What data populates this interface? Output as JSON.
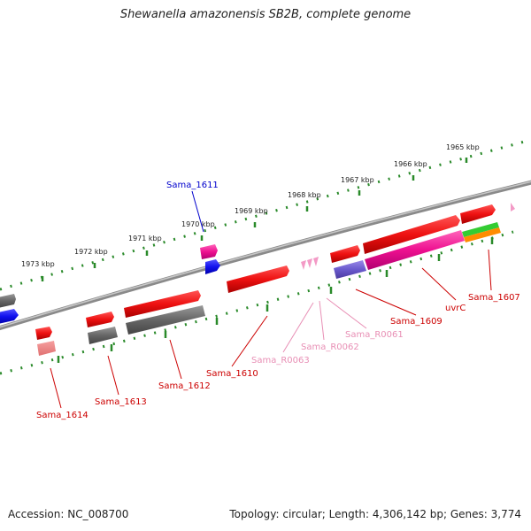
{
  "title": "Shewanella amazonensis SB2B, complete genome",
  "footer": {
    "accession": "Accession: NC_008700",
    "summary": "Topology: circular; Length: 4,306,142 bp; Genes: 3,774"
  },
  "scale": {
    "ticks": [
      "1965 kbp",
      "1966 kbp",
      "1967 kbp",
      "1968 kbp",
      "1969 kbp",
      "1970 kbp",
      "1971 kbp",
      "1972 kbp",
      "1973 kbp"
    ]
  },
  "genes": {
    "forward": [
      "Sama_1611",
      "Sama_1607",
      "uvrC",
      "Sama_1609",
      "Sama_R0061",
      "Sama_R0062",
      "Sama_R0063",
      "Sama_1610",
      "Sama_1612",
      "Sama_1613",
      "Sama_1614"
    ]
  },
  "colors": {
    "backbone": "#8a8a8a",
    "tick_green": "#2a8a2a",
    "gene_red": "#e01010",
    "gene_gray": "#666666",
    "gene_pink": "#ee1090",
    "gene_blue": "#1010ee",
    "gene_violet": "#6a5acd",
    "gene_green": "#33cc33",
    "gene_orange": "#ff8c00",
    "rna_pink": "#f39ac6",
    "label_red": "#cc0000",
    "label_blue": "#0000cc",
    "label_pink": "#e88fb5"
  }
}
